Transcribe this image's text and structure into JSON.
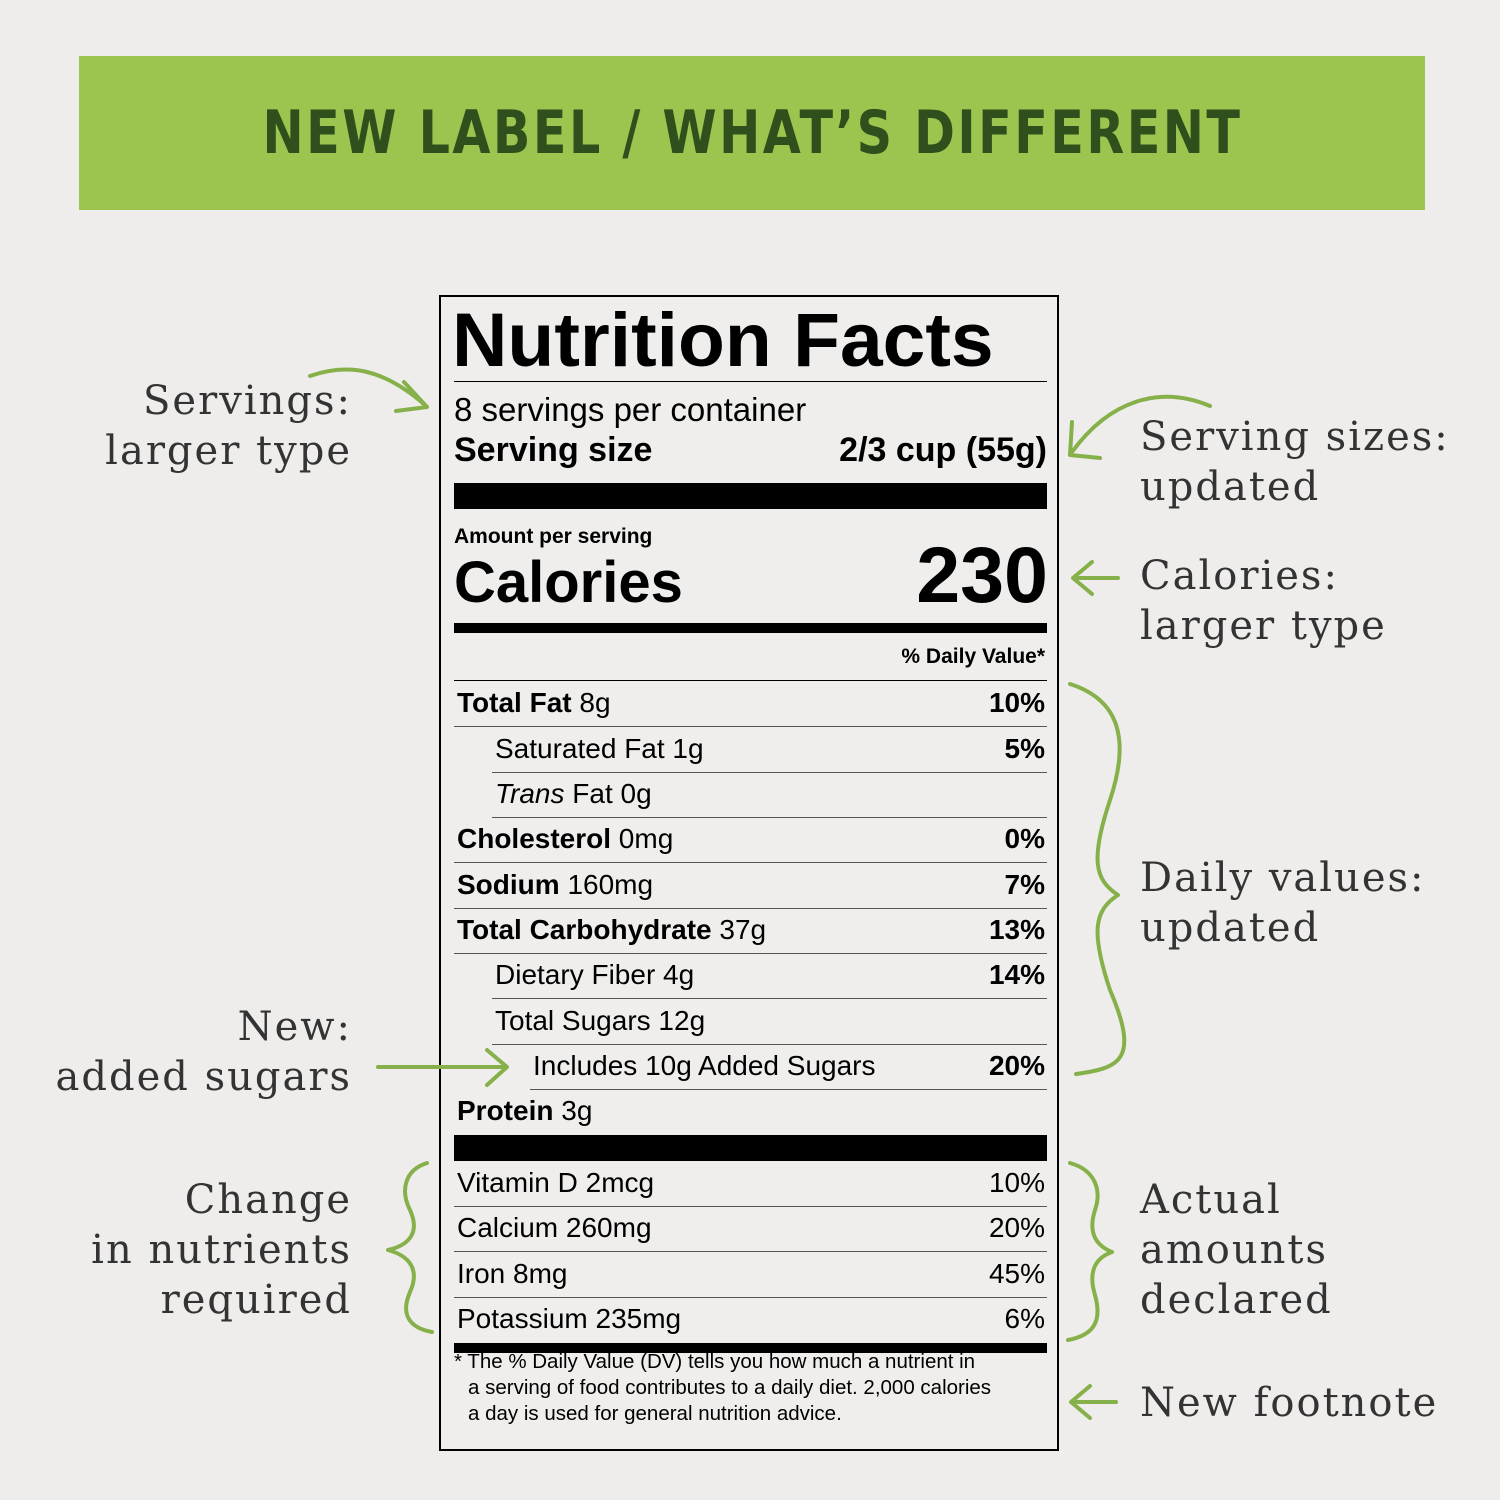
{
  "banner": {
    "title": "NEW LABEL / WHAT’S DIFFERENT"
  },
  "label": {
    "title": "Nutrition Facts",
    "servings": "8 servings per container",
    "serving_size_label": "Serving size",
    "serving_size_value": "2/3 cup (55g)",
    "amount_per_serving": "Amount per serving",
    "calories_label": "Calories",
    "calories_value": "230",
    "dv_header": "% Daily Value*",
    "nutrients": [
      {
        "name_bold": "Total Fat",
        "name": " 8g",
        "pct": "10%"
      },
      {
        "name": "Saturated Fat 1g",
        "pct": "5%"
      },
      {
        "name_italic": "Trans",
        "name": " Fat 0g",
        "pct": ""
      },
      {
        "name_bold": "Cholesterol",
        "name": " 0mg",
        "pct": "0%"
      },
      {
        "name_bold": "Sodium",
        "name": " 160mg",
        "pct": "7%"
      },
      {
        "name_bold": "Total Carbohydrate",
        "name": " 37g",
        "pct": "13%"
      },
      {
        "name": "Dietary Fiber 4g",
        "pct": "14%"
      },
      {
        "name": "Total Sugars 12g",
        "pct": ""
      },
      {
        "name": "Includes 10g Added Sugars",
        "pct": "20%"
      },
      {
        "name_bold": "Protein",
        "name": " 3g",
        "pct": ""
      }
    ],
    "vitamins": [
      {
        "name": "Vitamin D 2mcg",
        "pct": "10%"
      },
      {
        "name": "Calcium 260mg",
        "pct": "20%"
      },
      {
        "name": "Iron 8mg",
        "pct": "45%"
      },
      {
        "name": "Potassium 235mg",
        "pct": "6%"
      }
    ],
    "footnote_lines": [
      "* The % Daily Value (DV) tells you how much a nutrient in",
      "a serving of food contributes to a daily diet. 2,000 calories",
      "a day is used for general nutrition advice."
    ]
  },
  "annotations": {
    "servings": [
      "Servings:",
      "larger type"
    ],
    "serving_sizes": [
      "Serving sizes:",
      "updated"
    ],
    "calories": [
      "Calories:",
      "larger type"
    ],
    "daily_values": [
      "Daily values:",
      "updated"
    ],
    "added_sugars": [
      "New:",
      "added sugars"
    ],
    "nutrients_required": [
      "Change",
      "in nutrients",
      "required"
    ],
    "actual_amounts": [
      "Actual",
      "amounts",
      "declared"
    ],
    "footnote": [
      "New footnote"
    ]
  },
  "colors": {
    "banner": "#9bc54f",
    "banner_text": "#2f4f1d",
    "arrow": "#86b04a",
    "background": "#eeedeb"
  }
}
